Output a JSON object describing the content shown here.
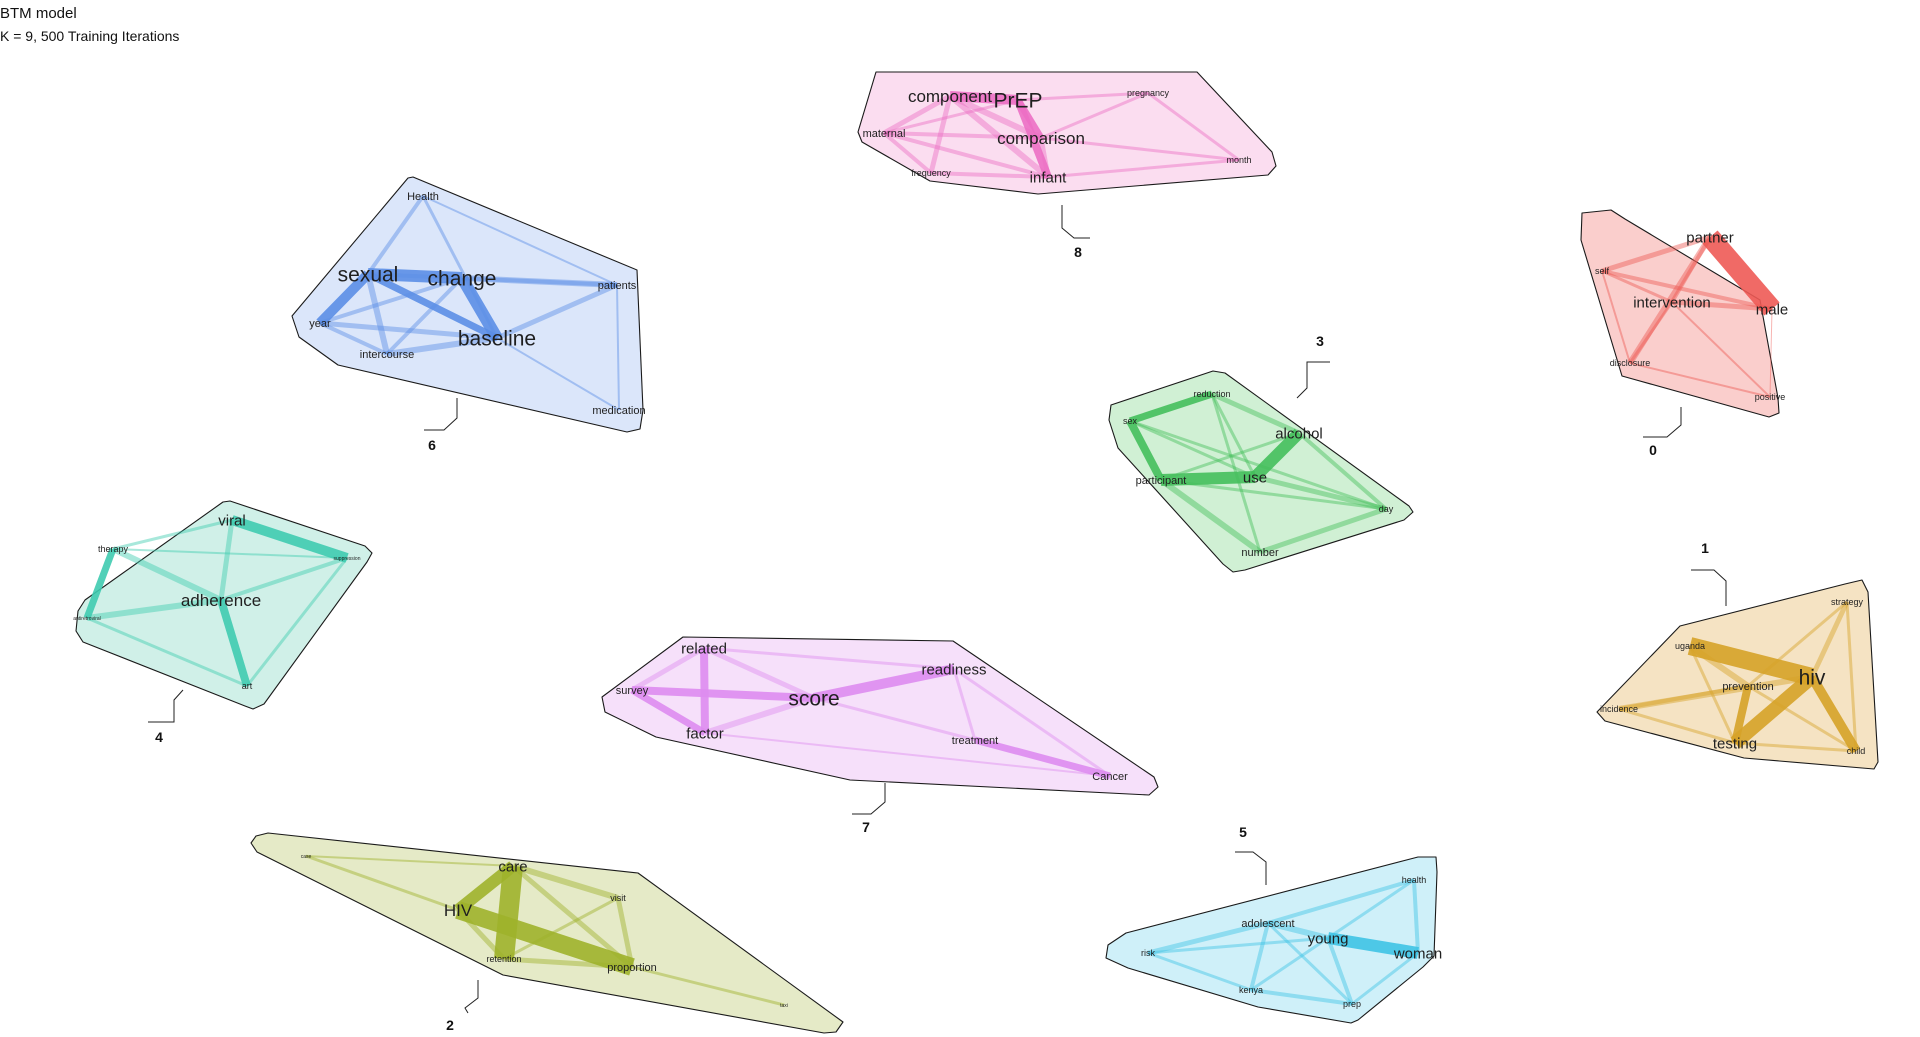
{
  "title": "BTM model",
  "subtitle": "K = 9, 500 Training Iterations",
  "topics": [
    {
      "id": "0",
      "color": "#f28a85",
      "edge_color": "#ee5a55",
      "terms": [
        {
          "word": "partner",
          "weight": 3
        },
        {
          "word": "self",
          "weight": 1
        },
        {
          "word": "intervention",
          "weight": 3
        },
        {
          "word": "male",
          "weight": 3
        },
        {
          "word": "disclosure",
          "weight": 1
        },
        {
          "word": "positive",
          "weight": 1
        }
      ]
    },
    {
      "id": "1",
      "color": "#e7bd70",
      "edge_color": "#d6a228",
      "terms": [
        {
          "word": "strategy",
          "weight": 1
        },
        {
          "word": "uganda",
          "weight": 1
        },
        {
          "word": "hiv",
          "weight": 5
        },
        {
          "word": "prevention",
          "weight": 2
        },
        {
          "word": "incidence",
          "weight": 1
        },
        {
          "word": "testing",
          "weight": 3
        },
        {
          "word": "child",
          "weight": 1
        }
      ]
    },
    {
      "id": "2",
      "color": "#c2cd7a",
      "edge_color": "#9eb22b",
      "terms": [
        {
          "word": "case",
          "weight": 0
        },
        {
          "word": "care",
          "weight": 3
        },
        {
          "word": "HIV",
          "weight": 4
        },
        {
          "word": "visit",
          "weight": 1
        },
        {
          "word": "retention",
          "weight": 1
        },
        {
          "word": "proportion",
          "weight": 2
        },
        {
          "word": "taxi",
          "weight": 0
        }
      ]
    },
    {
      "id": "3",
      "color": "#8fdc98",
      "edge_color": "#44bf5c",
      "terms": [
        {
          "word": "reduction",
          "weight": 1
        },
        {
          "word": "sex",
          "weight": 1
        },
        {
          "word": "alcohol",
          "weight": 3
        },
        {
          "word": "use",
          "weight": 3
        },
        {
          "word": "participant",
          "weight": 2
        },
        {
          "word": "day",
          "weight": 1
        },
        {
          "word": "number",
          "weight": 2
        }
      ]
    },
    {
      "id": "4",
      "color": "#8edcc9",
      "edge_color": "#3fcbb0",
      "terms": [
        {
          "word": "viral",
          "weight": 3
        },
        {
          "word": "therapy",
          "weight": 1
        },
        {
          "word": "suppression",
          "weight": 0
        },
        {
          "word": "adherence",
          "weight": 4
        },
        {
          "word": "antiretroviral",
          "weight": 0
        },
        {
          "word": "art",
          "weight": 1
        }
      ]
    },
    {
      "id": "5",
      "color": "#8ddcf0",
      "edge_color": "#3ec3e4",
      "terms": [
        {
          "word": "health",
          "weight": 1
        },
        {
          "word": "adolescent",
          "weight": 2
        },
        {
          "word": "young",
          "weight": 3
        },
        {
          "word": "risk",
          "weight": 1
        },
        {
          "word": "woman",
          "weight": 3
        },
        {
          "word": "kenya",
          "weight": 1
        },
        {
          "word": "prep",
          "weight": 1
        }
      ]
    },
    {
      "id": "6",
      "color": "#a9c4f2",
      "edge_color": "#5b8ee6",
      "terms": [
        {
          "word": "Health",
          "weight": 2
        },
        {
          "word": "sexual",
          "weight": 5
        },
        {
          "word": "change",
          "weight": 5
        },
        {
          "word": "patients",
          "weight": 2
        },
        {
          "word": "year",
          "weight": 2
        },
        {
          "word": "baseline",
          "weight": 5
        },
        {
          "word": "intercourse",
          "weight": 2
        },
        {
          "word": "medication",
          "weight": 2
        }
      ]
    },
    {
      "id": "7",
      "color": "#e9b4f3",
      "edge_color": "#de8cf0",
      "terms": [
        {
          "word": "related",
          "weight": 3
        },
        {
          "word": "readiness",
          "weight": 3
        },
        {
          "word": "survey",
          "weight": 2
        },
        {
          "word": "score",
          "weight": 5
        },
        {
          "word": "factor",
          "weight": 3
        },
        {
          "word": "treatment",
          "weight": 2
        },
        {
          "word": "Cancer",
          "weight": 2
        }
      ]
    },
    {
      "id": "8",
      "color": "#f5aedc",
      "edge_color": "#ec6fc4",
      "terms": [
        {
          "word": "component",
          "weight": 4
        },
        {
          "word": "PrEP",
          "weight": 5
        },
        {
          "word": "pregnancy",
          "weight": 1
        },
        {
          "word": "maternal",
          "weight": 2
        },
        {
          "word": "comparison",
          "weight": 4
        },
        {
          "word": "month",
          "weight": 1
        },
        {
          "word": "frequency",
          "weight": 1
        },
        {
          "word": "infant",
          "weight": 3
        }
      ]
    }
  ]
}
